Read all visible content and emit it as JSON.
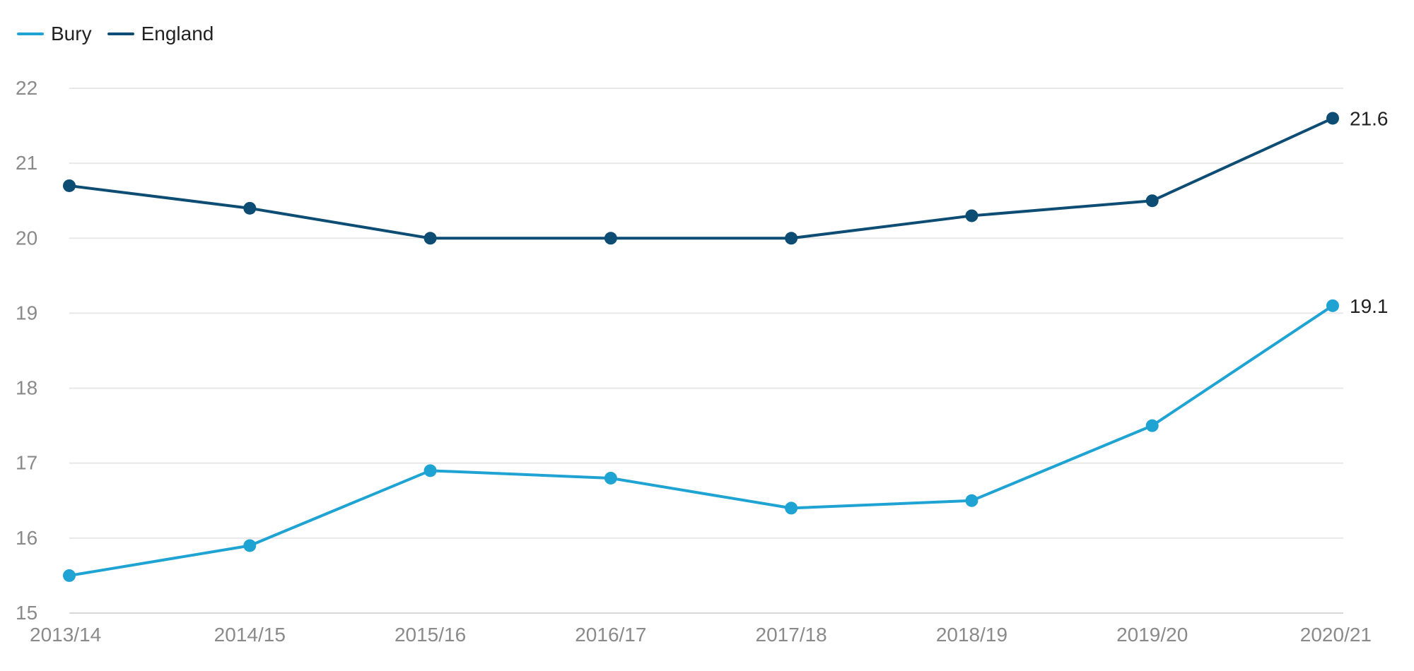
{
  "chart_data": {
    "type": "line",
    "categories": [
      "2013/14",
      "2014/15",
      "2015/16",
      "2016/17",
      "2017/18",
      "2018/19",
      "2019/20",
      "2020/21"
    ],
    "series": [
      {
        "name": "Bury",
        "color": "#1ea3d3",
        "values": [
          15.5,
          15.9,
          16.9,
          16.8,
          16.4,
          16.5,
          17.5,
          19.1
        ],
        "end_label": "19.1"
      },
      {
        "name": "England",
        "color": "#0d4d74",
        "values": [
          20.7,
          20.4,
          20.0,
          20.0,
          20.0,
          20.3,
          20.5,
          21.6
        ],
        "end_label": "21.6"
      }
    ],
    "yticks": [
      15,
      16,
      17,
      18,
      19,
      20,
      21,
      22
    ],
    "ylim": [
      15,
      22
    ],
    "grid": true,
    "legend_position": "top-left",
    "title": "",
    "xlabel": "",
    "ylabel": ""
  }
}
